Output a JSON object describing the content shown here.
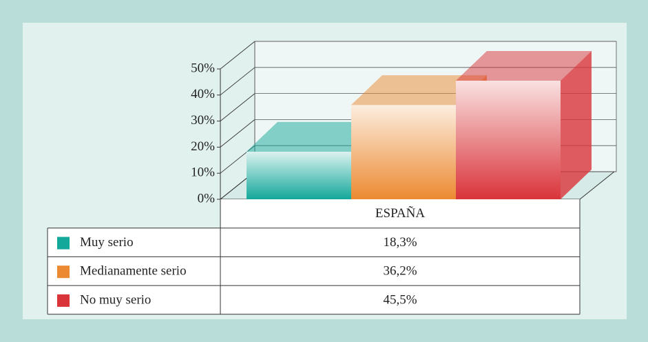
{
  "chart_data": {
    "type": "bar3d",
    "categories": [
      "ESPAÑA"
    ],
    "series": [
      {
        "name": "Muy serio",
        "color": "#14a89a",
        "values": [
          18.3
        ],
        "value_labels": [
          "18,3%"
        ]
      },
      {
        "name": "Medianamente serio",
        "color": "#ec8a32",
        "values": [
          36.2
        ],
        "value_labels": [
          "36,2%"
        ]
      },
      {
        "name": "No muy serio",
        "color": "#d9343a",
        "values": [
          45.5
        ],
        "value_labels": [
          "45,5%"
        ]
      }
    ],
    "ylim": [
      0,
      50
    ],
    "yticks": [
      {
        "value": 0,
        "label": "0%"
      },
      {
        "value": 10,
        "label": "10%"
      },
      {
        "value": 20,
        "label": "20%"
      },
      {
        "value": 30,
        "label": "30%"
      },
      {
        "value": 40,
        "label": "40%"
      },
      {
        "value": 50,
        "label": "50%"
      }
    ],
    "grid": true
  }
}
